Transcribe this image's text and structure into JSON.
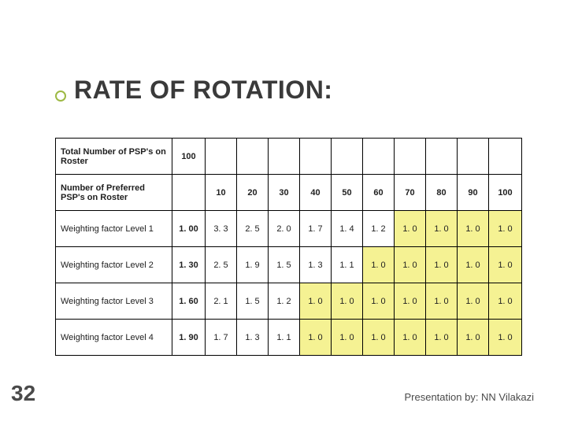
{
  "title": "RATE OF ROTATION:",
  "page_number": "32",
  "footer": "Presentation by: NN Vilakazi",
  "colors": {
    "bullet_border": "#9db944",
    "highlight_bg": "#f5f293",
    "border": "#000000",
    "text": "#202020",
    "title_text": "#3a3a3a",
    "background": "#ffffff"
  },
  "typography": {
    "title_fontsize": 32,
    "table_fontsize": 11,
    "footer_fontsize": 13,
    "page_num_fontsize": 28
  },
  "table": {
    "header_row1": {
      "label": "Total Number of PSP's on Roster",
      "value": "100"
    },
    "header_row2": {
      "label": "Number of Preferred PSP's on Roster",
      "cols": [
        "10",
        "20",
        "30",
        "40",
        "50",
        "60",
        "70",
        "80",
        "90",
        "100"
      ]
    },
    "rows": [
      {
        "label": "Weighting factor Level 1",
        "factor": "1. 00",
        "vals": [
          "3. 3",
          "2. 5",
          "2. 0",
          "1. 7",
          "1. 4",
          "1. 2",
          "1. 0",
          "1. 0",
          "1. 0",
          "1. 0"
        ],
        "hl_from": 6
      },
      {
        "label": "Weighting factor Level 2",
        "factor": "1. 30",
        "vals": [
          "2. 5",
          "1. 9",
          "1. 5",
          "1. 3",
          "1. 1",
          "1. 0",
          "1. 0",
          "1. 0",
          "1. 0",
          "1. 0"
        ],
        "hl_from": 5
      },
      {
        "label": "Weighting factor Level 3",
        "factor": "1. 60",
        "vals": [
          "2. 1",
          "1. 5",
          "1. 2",
          "1. 0",
          "1. 0",
          "1. 0",
          "1. 0",
          "1. 0",
          "1. 0",
          "1. 0"
        ],
        "hl_from": 3
      },
      {
        "label": "Weighting factor Level 4",
        "factor": "1. 90",
        "vals": [
          "1. 7",
          "1. 3",
          "1. 1",
          "1. 0",
          "1. 0",
          "1. 0",
          "1. 0",
          "1. 0",
          "1. 0",
          "1. 0"
        ],
        "hl_from": 3
      }
    ]
  }
}
